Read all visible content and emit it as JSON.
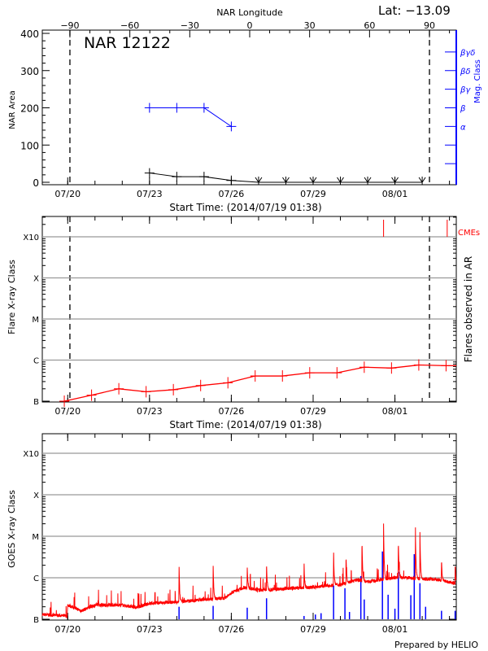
{
  "header": {
    "lat_label": "Lat: −13.09",
    "credit": "Prepared by HELIO"
  },
  "colors": {
    "area": "#000000",
    "mag_class": "#0000ff",
    "flares": "#ff0000",
    "cmes": "#ff0000",
    "goes_flux": "#ff0000",
    "goes_events": "#0000ff",
    "grid": "#999999"
  },
  "chart_data": [
    {
      "panel": "nar",
      "type": "line",
      "title": "NAR 12122",
      "xlabel": "Start Time: (2014/07/19 01:38)",
      "ylabel": "NAR Area",
      "x_range": [
        "2014-07-19T01:38",
        "2014-08-03T06:00"
      ],
      "xticks": [
        {
          "label": "07/20",
          "t": "2014-07-20T00:00"
        },
        {
          "label": "07/23",
          "t": "2014-07-23T00:00"
        },
        {
          "label": "07/26",
          "t": "2014-07-26T00:00"
        },
        {
          "label": "07/29",
          "t": "2014-07-29T00:00"
        },
        {
          "label": "08/01",
          "t": "2014-08-01T00:00"
        }
      ],
      "ylim": [
        0,
        400
      ],
      "yticks": [
        "0",
        "100",
        "200",
        "300",
        "400"
      ],
      "top_axis": {
        "label": "NAR Longitude",
        "ticks": [
          "-90",
          "-60",
          "-30",
          "0",
          "30",
          "60",
          "90"
        ]
      },
      "right_axis": {
        "label": "Mag. Class",
        "ticks": [
          {
            "value": 50,
            "label": ""
          },
          {
            "value": 100,
            "label": ""
          },
          {
            "value": 150,
            "label": "α"
          },
          {
            "value": 200,
            "label": "β"
          },
          {
            "value": 250,
            "label": "βγ"
          },
          {
            "value": 300,
            "label": "βδ"
          },
          {
            "value": 350,
            "label": "βγδ"
          }
        ]
      },
      "limb_longitudes": [
        -90,
        90
      ],
      "area": {
        "t": [
          "2014-07-23T00:00",
          "2014-07-24T00:00",
          "2014-07-25T00:00",
          "2014-07-26T00:00",
          "2014-07-27T00:00",
          "2014-07-28T00:00",
          "2014-07-29T00:00",
          "2014-07-30T00:00",
          "2014-07-31T00:00",
          "2014-08-01T00:00",
          "2014-08-02T00:00"
        ],
        "values": [
          25,
          15,
          15,
          5,
          0,
          0,
          0,
          0,
          0,
          0,
          0
        ],
        "beyond_limb_from_index": 4
      },
      "mag_class": {
        "t": [
          "2014-07-23T00:00",
          "2014-07-24T00:00",
          "2014-07-25T00:00",
          "2014-07-26T00:00"
        ],
        "classes": [
          "β",
          "β",
          "β",
          "α"
        ],
        "values": [
          200,
          200,
          200,
          150
        ]
      }
    },
    {
      "panel": "flares",
      "type": "line",
      "xlabel": "Start Time: (2014/07/19 01:38)",
      "ylabel": "Flare X-ray Class",
      "right_label": "Flares observed in AR",
      "cme_label": "CMEs",
      "y_scale": "log",
      "yticks": [
        {
          "label": "B",
          "flux": 1e-07
        },
        {
          "label": "C",
          "flux": 1e-06
        },
        {
          "label": "M",
          "flux": 1e-05
        },
        {
          "label": "X",
          "flux": 0.0001
        },
        {
          "label": "X10",
          "flux": 0.001
        }
      ],
      "grid": true,
      "flare_level": {
        "t": [
          "2014-07-19T21:00",
          "2014-07-20T21:00",
          "2014-07-21T21:00",
          "2014-07-22T21:00",
          "2014-07-23T21:00",
          "2014-07-24T21:00",
          "2014-07-25T21:00",
          "2014-07-26T21:00",
          "2014-07-27T21:00",
          "2014-07-28T21:00",
          "2014-07-29T21:00",
          "2014-07-30T21:00",
          "2014-07-31T21:00",
          "2014-08-01T21:00",
          "2014-08-02T21:00"
        ],
        "flux": [
          1e-07,
          1.4e-07,
          2e-07,
          1.7e-07,
          1.9e-07,
          2.4e-07,
          2.8e-07,
          4.1e-07,
          4.1e-07,
          4.9e-07,
          4.9e-07,
          6.7e-07,
          6.4e-07,
          7.6e-07,
          7.3e-07
        ]
      },
      "cmes": [
        "2014-07-31T14:00",
        "2014-08-02T22:00"
      ]
    },
    {
      "panel": "goes",
      "type": "line",
      "ylabel": "GOES X-ray Class",
      "y_scale": "log",
      "yticks": [
        {
          "label": "B",
          "flux": 1e-07
        },
        {
          "label": "C",
          "flux": 1e-06
        },
        {
          "label": "M",
          "flux": 1e-05
        },
        {
          "label": "X",
          "flux": 0.0001
        },
        {
          "label": "X10",
          "flux": 0.001
        }
      ],
      "grid": true,
      "background": {
        "t": [
          "2014-07-19T01:38",
          "2014-07-19T23:30",
          "2014-07-20T00:00",
          "2014-07-20T12:00",
          "2014-07-21T00:00",
          "2014-07-22T00:00",
          "2014-07-22T12:00",
          "2014-07-23T00:00",
          "2014-07-24T00:00",
          "2014-07-25T00:00",
          "2014-07-25T18:00",
          "2014-07-26T00:00",
          "2014-07-26T12:00",
          "2014-07-27T00:00",
          "2014-07-28T00:00",
          "2014-07-29T00:00",
          "2014-07-29T12:00",
          "2014-07-30T00:00",
          "2014-07-30T15:00",
          "2014-07-31T00:00",
          "2014-07-31T12:00",
          "2014-08-01T00:00",
          "2014-08-01T12:00",
          "2014-08-02T00:00",
          "2014-08-02T12:00",
          "2014-08-03T06:00"
        ],
        "flux": [
          1.3e-07,
          1.2e-07,
          2.2e-07,
          1.6e-07,
          2.2e-07,
          2.2e-07,
          1.9e-07,
          2.4e-07,
          2.6e-07,
          3e-07,
          3.2e-07,
          4.4e-07,
          5.9e-07,
          5e-07,
          5.5e-07,
          5.9e-07,
          6.4e-07,
          6.8e-07,
          9e-07,
          8e-07,
          8.9e-07,
          1e-06,
          1e-06,
          9.3e-07,
          9e-07,
          7.4e-07
        ]
      },
      "peaks": {
        "t": [
          "2014-07-24T02:00",
          "2014-07-25T08:00",
          "2014-07-26T14:00",
          "2014-07-27T07:00",
          "2014-07-28T16:00",
          "2014-07-29T18:00",
          "2014-07-30T05:00",
          "2014-07-30T19:00",
          "2014-07-31T14:00",
          "2014-08-01T03:00",
          "2014-08-01T18:00",
          "2014-08-01T22:00",
          "2014-08-02T17:00",
          "2014-08-03T05:00"
        ],
        "flux": [
          2.1e-06,
          2.2e-06,
          1.9e-06,
          2.5e-06,
          2.4e-06,
          4.6e-06,
          3.7e-06,
          9.1e-06,
          2.5e-05,
          8.6e-06,
          2e-05,
          1.5e-05,
          2.9e-06,
          2.3e-06
        ]
      },
      "events": {
        "t": [
          "2014-07-24T02:00",
          "2014-07-25T08:00",
          "2014-07-26T14:00",
          "2014-07-27T07:00",
          "2014-07-28T16:00",
          "2014-07-29T02:00",
          "2014-07-29T07:00",
          "2014-07-29T18:00",
          "2014-07-30T04:00",
          "2014-07-30T08:00",
          "2014-07-30T18:00",
          "2014-07-30T21:00",
          "2014-07-31T13:00",
          "2014-07-31T18:00",
          "2014-08-01T00:00",
          "2014-08-01T03:00",
          "2014-08-01T14:00",
          "2014-08-01T17:00",
          "2014-08-01T22:00",
          "2014-08-02T03:00",
          "2014-08-02T17:00",
          "2014-08-03T05:00"
        ],
        "flux": [
          2e-07,
          2.1e-07,
          1.9e-07,
          3.2e-07,
          1.2e-07,
          1.3e-07,
          1.4e-07,
          6.5e-07,
          5.6e-07,
          1.5e-07,
          1.1e-06,
          3e-07,
          4.3e-06,
          3.9e-07,
          1.8e-07,
          1.4e-06,
          3.8e-07,
          3.7e-06,
          7.4e-07,
          2e-07,
          1.6e-07,
          1.6e-07
        ]
      }
    }
  ]
}
